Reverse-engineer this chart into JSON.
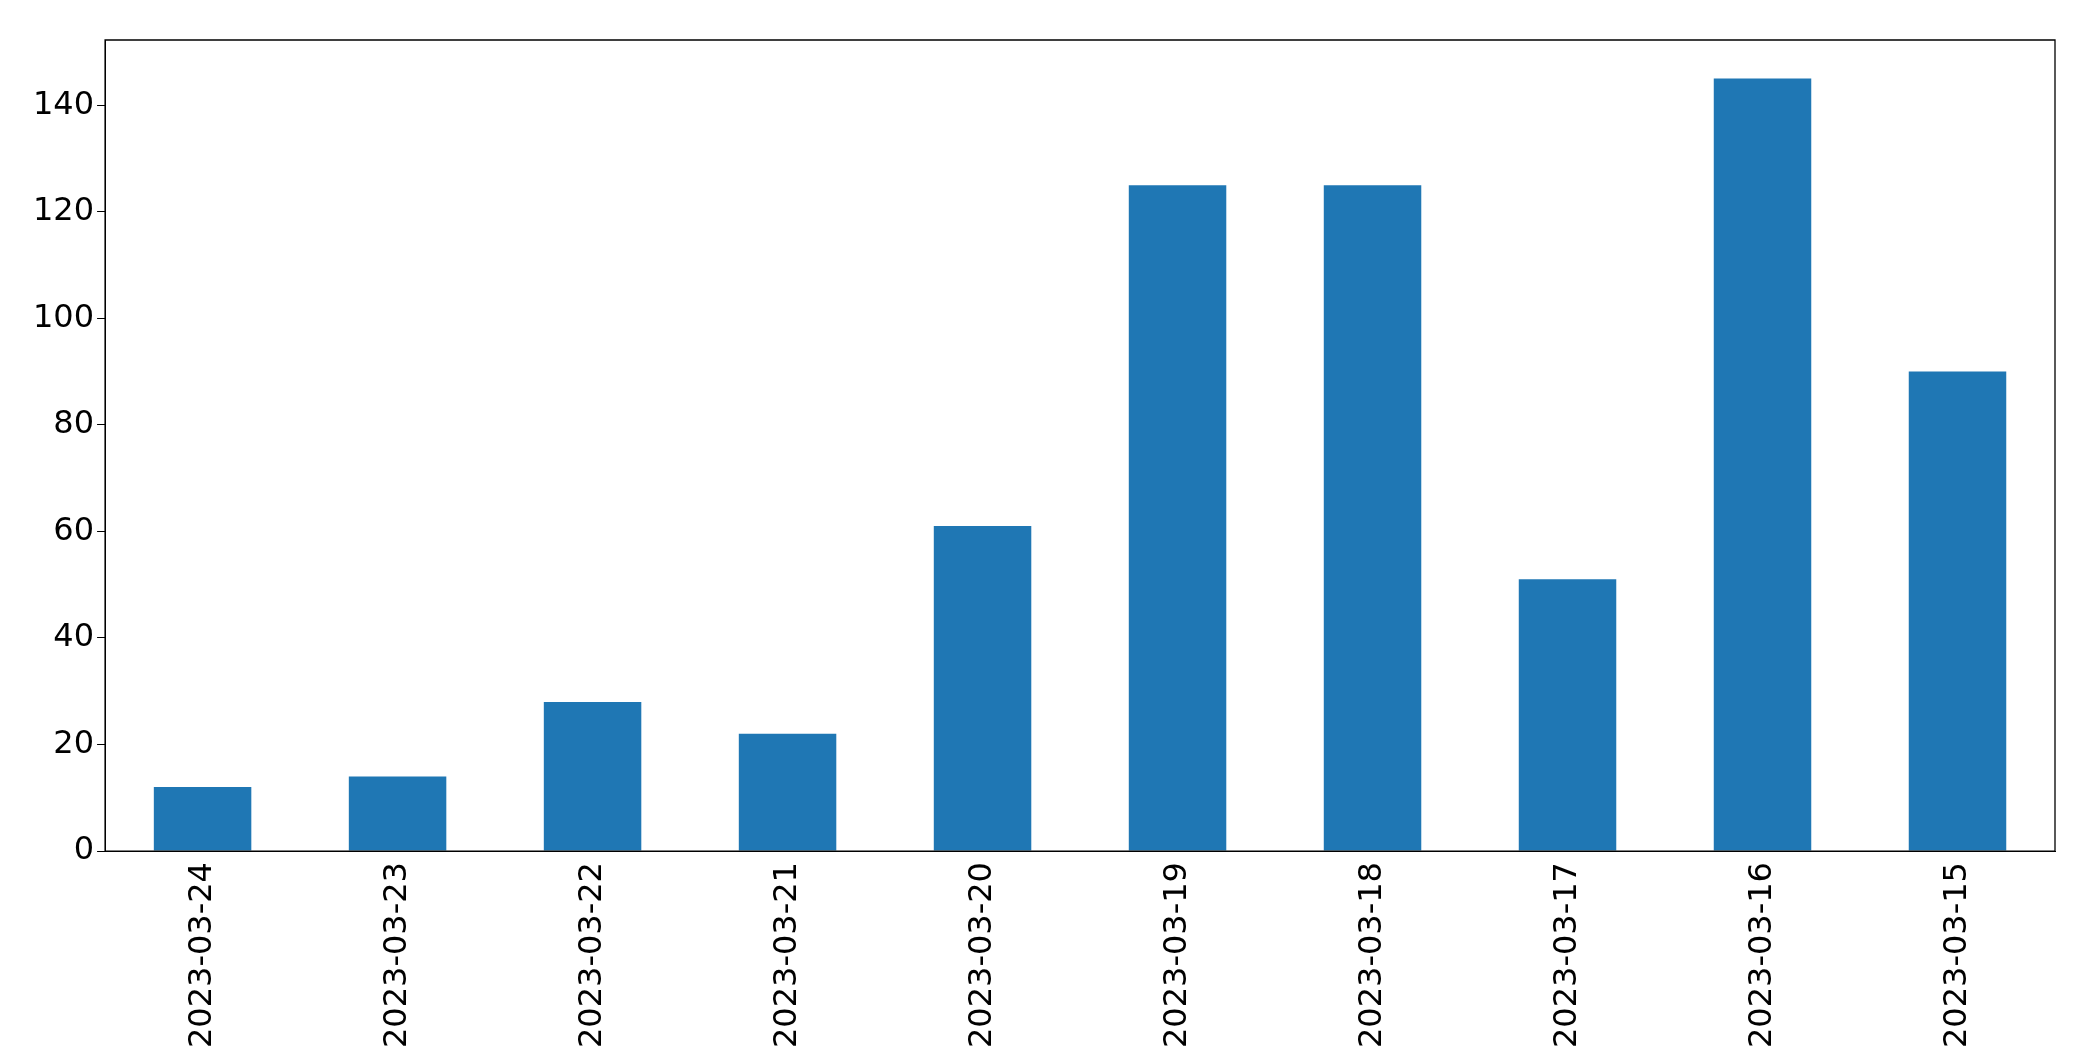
{
  "chart_data": {
    "type": "bar",
    "categories": [
      "2023-03-24",
      "2023-03-23",
      "2023-03-22",
      "2023-03-21",
      "2023-03-20",
      "2023-03-19",
      "2023-03-18",
      "2023-03-17",
      "2023-03-16",
      "2023-03-15"
    ],
    "values": [
      12,
      14,
      28,
      22,
      61,
      125,
      125,
      51,
      145,
      90
    ],
    "color": "#1f77b4",
    "ylim": [
      0,
      152.25
    ],
    "yticks": [
      0,
      20,
      40,
      60,
      80,
      100,
      120,
      140
    ],
    "grid": false,
    "legend": false
  }
}
